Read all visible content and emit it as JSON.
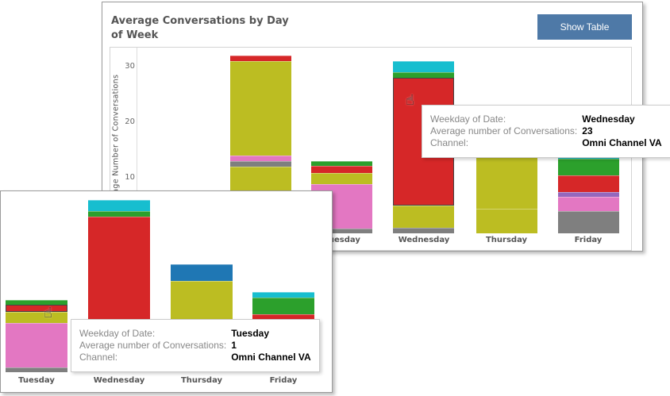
{
  "header": {
    "title": "Average Conversations by Day of Week",
    "show_table_label": "Show Table"
  },
  "colors": {
    "gray": "#7f7f7f",
    "pink": "#e377c2",
    "olive": "#bcbd22",
    "red": "#d62728",
    "green": "#2ca02c",
    "cyan": "#17becf",
    "purple": "#9467bd",
    "blue": "#1f77b4",
    "button": "#4e79a7"
  },
  "chart_data": {
    "type": "bar",
    "stacked": true,
    "ylabel": "Average Number of Conversations",
    "yticks": [
      10,
      20,
      30
    ],
    "ylim": [
      0,
      33
    ],
    "categories": [
      "",
      "Tuesday",
      "Wednesday",
      "Thursday",
      "Friday"
    ],
    "bars": [
      {
        "day": "",
        "segments": [
          {
            "color": "olive",
            "from": 0,
            "to": 12
          },
          {
            "color": "gray",
            "from": 12,
            "to": 13
          },
          {
            "color": "pink",
            "from": 13,
            "to": 14
          },
          {
            "color": "olive",
            "from": 14,
            "to": 31
          },
          {
            "color": "red",
            "from": 31,
            "to": 32
          }
        ]
      },
      {
        "day": "Tuesday",
        "segments": [
          {
            "color": "gray",
            "from": 0,
            "to": 0.9
          },
          {
            "color": "pink",
            "from": 0.9,
            "to": 8.9
          },
          {
            "color": "olive",
            "from": 8.9,
            "to": 10.9
          },
          {
            "color": "red",
            "from": 10.9,
            "to": 12.1
          },
          {
            "color": "green",
            "from": 12.1,
            "to": 13
          }
        ]
      },
      {
        "day": "Wednesday",
        "segments": [
          {
            "color": "gray",
            "from": 0,
            "to": 1
          },
          {
            "color": "olive",
            "from": 1,
            "to": 5
          },
          {
            "color": "red",
            "from": 5,
            "to": 28
          },
          {
            "color": "green",
            "from": 28,
            "to": 29
          },
          {
            "color": "cyan",
            "from": 29,
            "to": 31
          }
        ]
      },
      {
        "day": "Thursday",
        "segments": [
          {
            "color": "olive",
            "from": 0,
            "to": 4.4
          },
          {
            "color": "olive",
            "from": 4.4,
            "to": 16.4
          },
          {
            "color": "blue",
            "from": 16.4,
            "to": 19.4
          }
        ]
      },
      {
        "day": "Friday",
        "segments": [
          {
            "color": "gray",
            "from": 0,
            "to": 4
          },
          {
            "color": "pink",
            "from": 4,
            "to": 6.6
          },
          {
            "color": "purple",
            "from": 6.6,
            "to": 7.5
          },
          {
            "color": "red",
            "from": 7.5,
            "to": 10.4
          },
          {
            "color": "green",
            "from": 10.4,
            "to": 13.4
          },
          {
            "color": "cyan",
            "from": 13.4,
            "to": 14.4
          }
        ]
      }
    ]
  },
  "tooltip_top": {
    "k1": "Weekday of Date:",
    "v1": "Wednesday",
    "k2": "Average number of Conversations:",
    "v2": "23",
    "k3": "Channel:",
    "v3": "Omni Channel VA"
  },
  "tooltip_bottom": {
    "k1": "Weekday of Date:",
    "v1": "Tuesday",
    "k2": "Average number of Conversations:",
    "v2": "1",
    "k3": "Channel:",
    "v3": "Omni Channel VA"
  }
}
